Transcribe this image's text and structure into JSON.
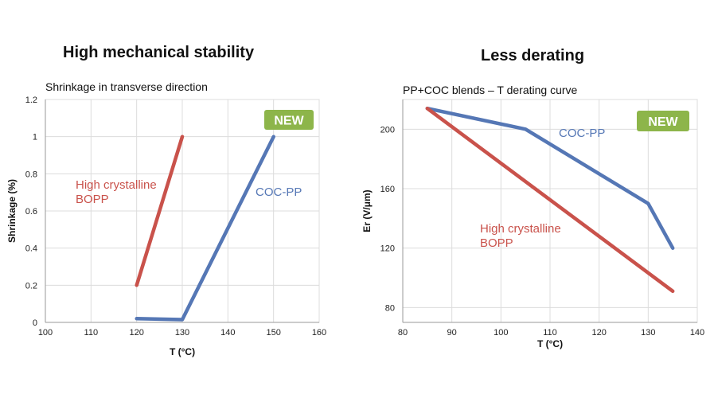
{
  "headings": {
    "left": "High mechanical stability",
    "right": "Less derating"
  },
  "colors": {
    "red": "#c9524b",
    "blue": "#5577b5",
    "badge": "#8db54a",
    "grid": "#dcdcdc",
    "axis": "#999999"
  },
  "chart_data": [
    {
      "type": "line",
      "title": "Shrinkage in transverse direction",
      "xlabel": "T (°C)",
      "ylabel": "Shrinkage (%)",
      "xlim": [
        100,
        160
      ],
      "ylim": [
        0,
        1.2
      ],
      "xticks": [
        "100",
        "110",
        "120",
        "130",
        "140",
        "150",
        "160"
      ],
      "yticks": [
        "0",
        "0.2",
        "0.4",
        "0.6",
        "0.8",
        "1",
        "1.2"
      ],
      "badge": "NEW",
      "series": [
        {
          "label_lines": [
            "High crystalline",
            "BOPP"
          ],
          "color": "#c9524b",
          "x": [
            120,
            130
          ],
          "y": [
            0.2,
            1.0
          ]
        },
        {
          "label_lines": [
            "COC-PP"
          ],
          "color": "#5577b5",
          "x": [
            120,
            130,
            150
          ],
          "y": [
            0.02,
            0.015,
            1.0
          ]
        }
      ]
    },
    {
      "type": "line",
      "title": "PP+COC blends – T derating curve",
      "xlabel": "T (°C)",
      "ylabel": "Er (V/μm)",
      "xlim": [
        80,
        140
      ],
      "ylim": [
        70,
        220
      ],
      "xticks": [
        "80",
        "90",
        "100",
        "110",
        "120",
        "130",
        "140"
      ],
      "yticks": [
        "80",
        "120",
        "160",
        "200"
      ],
      "badge": "NEW",
      "series": [
        {
          "label_lines": [
            "COC-PP"
          ],
          "color": "#5577b5",
          "x": [
            85,
            105,
            130,
            135
          ],
          "y": [
            214,
            200,
            150,
            120
          ]
        },
        {
          "label_lines": [
            "High crystalline",
            "BOPP"
          ],
          "color": "#c9524b",
          "x": [
            85,
            135
          ],
          "y": [
            214,
            91
          ]
        }
      ]
    }
  ]
}
